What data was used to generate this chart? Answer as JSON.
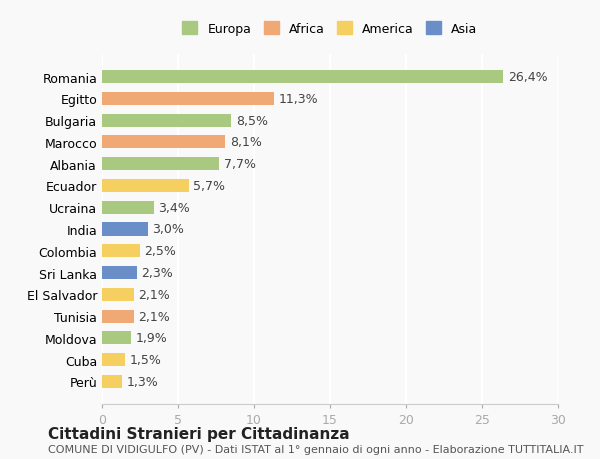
{
  "countries": [
    "Romania",
    "Egitto",
    "Bulgaria",
    "Marocco",
    "Albania",
    "Ecuador",
    "Ucraina",
    "India",
    "Colombia",
    "Sri Lanka",
    "El Salvador",
    "Tunisia",
    "Moldova",
    "Cuba",
    "Perù"
  ],
  "values": [
    26.4,
    11.3,
    8.5,
    8.1,
    7.7,
    5.7,
    3.4,
    3.0,
    2.5,
    2.3,
    2.1,
    2.1,
    1.9,
    1.5,
    1.3
  ],
  "regions": [
    "Europa",
    "Africa",
    "Europa",
    "Africa",
    "Europa",
    "America",
    "Europa",
    "Asia",
    "America",
    "Asia",
    "America",
    "Africa",
    "Europa",
    "America",
    "America"
  ],
  "region_colors": {
    "Europa": "#a8c97f",
    "Africa": "#f0a875",
    "America": "#f5d060",
    "Asia": "#6a8fc8"
  },
  "legend_order": [
    "Europa",
    "Africa",
    "America",
    "Asia"
  ],
  "xlim": [
    0,
    30
  ],
  "xticks": [
    0,
    5,
    10,
    15,
    20,
    25,
    30
  ],
  "title": "Cittadini Stranieri per Cittadinanza",
  "subtitle": "COMUNE DI VIDIGULFO (PV) - Dati ISTAT al 1° gennaio di ogni anno - Elaborazione TUTTITALIA.IT",
  "background_color": "#f9f9f9",
  "grid_color": "#ffffff",
  "bar_height": 0.6,
  "label_fontsize": 9,
  "tick_fontsize": 9,
  "title_fontsize": 11,
  "subtitle_fontsize": 8
}
